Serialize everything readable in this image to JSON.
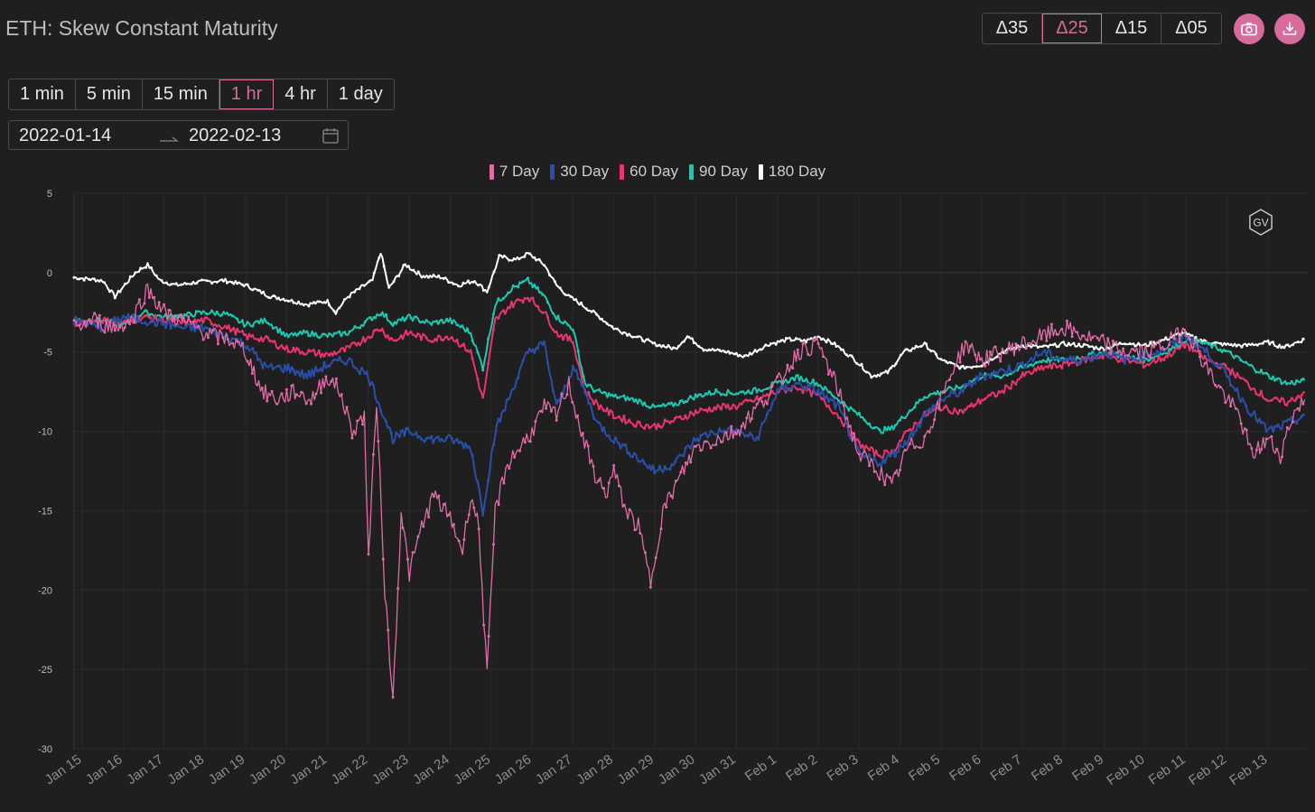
{
  "header": {
    "title": "ETH: Skew Constant Maturity",
    "delta_options": [
      "Δ35",
      "Δ25",
      "Δ15",
      "Δ05"
    ],
    "delta_selected": "Δ25",
    "camera_icon": "camera-icon",
    "download_icon": "download-icon"
  },
  "controls": {
    "intervals": [
      "1 min",
      "5 min",
      "15 min",
      "1 hr",
      "4 hr",
      "1 day"
    ],
    "interval_selected": "1 hr",
    "date_start": "2022-01-14",
    "date_end": "2022-02-13",
    "calendar_icon": "calendar-icon"
  },
  "watermark": "GV",
  "colors": {
    "accent": "#d76b9c",
    "7 Day": "#e06ca8",
    "30 Day": "#2a4fa8",
    "60 Day": "#e8356d",
    "90 Day": "#1ec8b0",
    "180 Day": "#ffffff"
  },
  "chart_data": {
    "type": "line",
    "ylim": [
      -30,
      5
    ],
    "yticks": [
      5,
      0,
      -5,
      -10,
      -15,
      -20,
      -25,
      -30
    ],
    "xlim": [
      14.8,
      44.95
    ],
    "x_tick_labels": [
      "Jan 15",
      "Jan 16",
      "Jan 17",
      "Jan 18",
      "Jan 19",
      "Jan 20",
      "Jan 21",
      "Jan 22",
      "Jan 23",
      "Jan 24",
      "Jan 25",
      "Jan 26",
      "Jan 27",
      "Jan 28",
      "Jan 29",
      "Jan 30",
      "Jan 31",
      "Feb 1",
      "Feb 2",
      "Feb 3",
      "Feb 4",
      "Feb 5",
      "Feb 6",
      "Feb 7",
      "Feb 8",
      "Feb 9",
      "Feb 10",
      "Feb 11",
      "Feb 12",
      "Feb 13"
    ],
    "x_tick_values": [
      15,
      16,
      17,
      18,
      19,
      20,
      21,
      22,
      23,
      24,
      25,
      26,
      27,
      28,
      29,
      30,
      31,
      32,
      33,
      34,
      35,
      36,
      37,
      38,
      39,
      40,
      41,
      42,
      43,
      44
    ],
    "x_unit": "day (Jan 15 = 15, Feb 1 = 32)",
    "legend": [
      "7 Day",
      "30 Day",
      "60 Day",
      "90 Day",
      "180 Day"
    ],
    "legend_position": "top-center",
    "grid": true,
    "series": [
      {
        "name": "180 Day",
        "x": [
          14.8,
          15.5,
          15.8,
          16.3,
          16.6,
          16.9,
          17.3,
          17.8,
          18.5,
          19.0,
          19.6,
          20.0,
          20.5,
          21.0,
          21.2,
          21.5,
          21.9,
          22.1,
          22.3,
          22.5,
          22.9,
          23.3,
          23.8,
          24.2,
          24.6,
          24.9,
          25.2,
          25.6,
          25.9,
          26.3,
          26.6,
          26.9,
          27.5,
          28.0,
          28.5,
          29.0,
          29.5,
          29.8,
          30.2,
          30.8,
          31.2,
          31.8,
          32.3,
          32.7,
          33.0,
          33.4,
          33.9,
          34.3,
          34.7,
          35.1,
          35.6,
          36.0,
          36.5,
          37.0,
          37.5,
          38.0,
          38.5,
          39.0,
          39.5,
          40.0,
          40.5,
          41.0,
          41.5,
          41.9,
          42.4,
          42.8,
          43.4,
          44.0,
          44.4,
          44.9
        ],
        "y": [
          -0.3,
          -0.5,
          -1.5,
          0.0,
          0.5,
          -0.5,
          -0.8,
          -0.6,
          -0.5,
          -0.8,
          -1.5,
          -1.7,
          -2.0,
          -1.8,
          -2.5,
          -1.5,
          -0.8,
          -0.5,
          1.3,
          -1.0,
          0.5,
          -0.2,
          -0.3,
          -0.8,
          -0.5,
          -1.2,
          1.0,
          0.8,
          1.2,
          0.5,
          -0.8,
          -1.5,
          -2.5,
          -3.5,
          -4.0,
          -4.5,
          -4.8,
          -4.0,
          -4.8,
          -5.0,
          -5.3,
          -4.5,
          -4.2,
          -4.3,
          -4.0,
          -4.5,
          -5.5,
          -6.5,
          -6.3,
          -5.0,
          -4.5,
          -5.5,
          -6.0,
          -5.8,
          -5.0,
          -4.6,
          -4.7,
          -4.5,
          -4.6,
          -4.8,
          -4.4,
          -4.6,
          -4.2,
          -3.8,
          -4.3,
          -4.5,
          -4.6,
          -4.4,
          -4.7,
          -4.2
        ]
      },
      {
        "name": "90 Day",
        "x": [
          14.8,
          15.5,
          16.0,
          16.5,
          17.0,
          17.5,
          18.0,
          18.5,
          19.0,
          19.5,
          20.0,
          20.5,
          21.0,
          21.5,
          22.0,
          22.3,
          22.6,
          23.0,
          23.5,
          24.0,
          24.5,
          24.8,
          25.1,
          25.5,
          25.9,
          26.3,
          26.6,
          27.0,
          27.3,
          27.6,
          28.0,
          28.5,
          29.0,
          29.5,
          30.0,
          30.5,
          31.0,
          31.5,
          32.0,
          32.5,
          33.0,
          33.5,
          34.0,
          34.5,
          34.8,
          35.2,
          35.6,
          36.0,
          36.5,
          37.0,
          37.5,
          38.0,
          38.5,
          39.0,
          39.5,
          40.0,
          40.5,
          41.0,
          41.5,
          42.0,
          42.5,
          43.0,
          43.5,
          44.0,
          44.5,
          44.9
        ],
        "y": [
          -3.0,
          -3.0,
          -3.3,
          -2.5,
          -2.8,
          -2.7,
          -2.5,
          -2.6,
          -3.3,
          -3.0,
          -4.0,
          -3.8,
          -4.0,
          -3.8,
          -3.0,
          -2.5,
          -3.2,
          -2.8,
          -3.2,
          -3.0,
          -3.8,
          -6.0,
          -2.0,
          -1.0,
          -0.5,
          -1.5,
          -2.8,
          -3.5,
          -7.0,
          -7.5,
          -7.8,
          -8.0,
          -8.5,
          -8.3,
          -7.8,
          -7.5,
          -7.6,
          -7.4,
          -7.0,
          -6.6,
          -7.0,
          -8.0,
          -9.0,
          -10.0,
          -9.8,
          -8.8,
          -7.8,
          -7.5,
          -7.2,
          -6.5,
          -6.5,
          -6.0,
          -5.5,
          -5.5,
          -5.3,
          -5.0,
          -5.3,
          -5.5,
          -5.0,
          -4.2,
          -4.5,
          -5.0,
          -5.8,
          -6.5,
          -7.0,
          -6.8
        ]
      },
      {
        "name": "60 Day",
        "x": [
          14.8,
          15.5,
          16.0,
          16.5,
          17.0,
          17.5,
          18.0,
          18.5,
          19.0,
          19.5,
          20.0,
          20.5,
          21.0,
          21.5,
          22.0,
          22.3,
          22.6,
          23.0,
          23.5,
          24.0,
          24.5,
          24.8,
          25.1,
          25.5,
          25.9,
          26.3,
          26.6,
          27.0,
          27.3,
          27.6,
          28.0,
          28.5,
          29.0,
          29.5,
          30.0,
          30.5,
          31.0,
          31.5,
          32.0,
          32.5,
          33.0,
          33.5,
          34.0,
          34.5,
          34.8,
          35.2,
          35.6,
          36.0,
          36.5,
          37.0,
          37.5,
          38.0,
          38.5,
          39.0,
          39.5,
          40.0,
          40.5,
          41.0,
          41.5,
          42.0,
          42.5,
          43.0,
          43.5,
          44.0,
          44.5,
          44.9
        ],
        "y": [
          -3.2,
          -3.0,
          -3.2,
          -2.8,
          -3.0,
          -3.2,
          -3.0,
          -3.4,
          -4.0,
          -4.2,
          -4.8,
          -5.0,
          -5.2,
          -4.8,
          -4.0,
          -3.5,
          -4.3,
          -3.8,
          -4.2,
          -4.0,
          -5.0,
          -8.0,
          -3.0,
          -2.0,
          -1.5,
          -2.5,
          -3.8,
          -4.3,
          -7.5,
          -8.3,
          -9.0,
          -9.5,
          -9.7,
          -9.3,
          -8.8,
          -8.5,
          -8.4,
          -8.0,
          -7.5,
          -7.2,
          -7.8,
          -9.0,
          -10.8,
          -11.5,
          -11.3,
          -10.0,
          -9.0,
          -8.5,
          -8.8,
          -8.0,
          -7.5,
          -6.5,
          -6.0,
          -5.8,
          -5.5,
          -5.2,
          -5.5,
          -5.8,
          -5.3,
          -4.5,
          -5.5,
          -6.0,
          -7.0,
          -8.0,
          -8.2,
          -7.5
        ]
      },
      {
        "name": "30 Day",
        "x": [
          14.8,
          15.5,
          16.0,
          16.5,
          17.0,
          17.5,
          18.0,
          18.5,
          19.0,
          19.5,
          20.0,
          20.5,
          21.0,
          21.5,
          22.0,
          22.3,
          22.6,
          23.0,
          23.5,
          24.0,
          24.5,
          24.8,
          25.1,
          25.5,
          25.9,
          26.3,
          26.6,
          27.0,
          27.3,
          27.6,
          28.0,
          28.5,
          29.0,
          29.5,
          30.0,
          30.5,
          31.0,
          31.5,
          32.0,
          32.5,
          33.0,
          33.5,
          34.0,
          34.5,
          34.8,
          35.2,
          35.6,
          36.0,
          36.5,
          37.0,
          37.5,
          38.0,
          38.5,
          39.0,
          39.5,
          40.0,
          40.5,
          41.0,
          41.5,
          42.0,
          42.5,
          43.0,
          43.5,
          44.0,
          44.5,
          44.9
        ],
        "y": [
          -3.0,
          -3.5,
          -2.8,
          -3.0,
          -3.2,
          -3.5,
          -3.5,
          -4.0,
          -4.5,
          -6.0,
          -6.0,
          -6.5,
          -5.8,
          -5.5,
          -6.5,
          -8.5,
          -10.5,
          -10.0,
          -10.5,
          -10.5,
          -11.0,
          -15.0,
          -10.0,
          -7.5,
          -5.0,
          -4.5,
          -8.5,
          -6.0,
          -7.5,
          -9.5,
          -10.5,
          -11.5,
          -12.5,
          -12.0,
          -10.5,
          -10.0,
          -10.0,
          -10.5,
          -7.5,
          -7.0,
          -7.5,
          -8.5,
          -11.5,
          -12.0,
          -11.5,
          -10.5,
          -9.0,
          -8.0,
          -7.5,
          -6.5,
          -6.2,
          -5.8,
          -5.0,
          -5.5,
          -5.5,
          -5.0,
          -5.5,
          -5.2,
          -4.8,
          -4.0,
          -5.0,
          -6.5,
          -8.5,
          -10.0,
          -9.5,
          -9.0
        ]
      },
      {
        "name": "7 Day",
        "x": [
          14.8,
          15.3,
          15.8,
          16.2,
          16.6,
          17.0,
          17.4,
          17.8,
          18.2,
          18.6,
          19.0,
          19.4,
          19.8,
          20.2,
          20.6,
          21.0,
          21.3,
          21.6,
          21.9,
          22.0,
          22.2,
          22.4,
          22.6,
          22.8,
          23.0,
          23.3,
          23.6,
          24.0,
          24.3,
          24.5,
          24.7,
          24.9,
          25.1,
          25.4,
          25.7,
          26.0,
          26.3,
          26.6,
          26.9,
          27.2,
          27.5,
          27.8,
          28.0,
          28.3,
          28.6,
          28.9,
          29.2,
          29.6,
          30.0,
          30.5,
          31.0,
          31.5,
          32.0,
          32.5,
          33.0,
          33.5,
          34.0,
          34.5,
          34.8,
          35.2,
          35.6,
          36.0,
          36.3,
          36.6,
          37.0,
          37.5,
          38.0,
          38.5,
          39.0,
          39.5,
          40.0,
          40.5,
          41.0,
          41.5,
          42.0,
          42.5,
          43.0,
          43.3,
          43.6,
          44.0,
          44.3,
          44.6,
          44.9
        ],
        "y": [
          -3.5,
          -3.0,
          -3.5,
          -3.0,
          -1.0,
          -2.5,
          -3.0,
          -3.5,
          -4.0,
          -4.2,
          -5.0,
          -7.5,
          -8.0,
          -7.5,
          -8.0,
          -6.5,
          -7.5,
          -10.0,
          -9.0,
          -18.0,
          -8.0,
          -20.0,
          -27.0,
          -15.0,
          -19.0,
          -16.0,
          -14.0,
          -15.5,
          -17.5,
          -14.0,
          -16.0,
          -25.5,
          -15.0,
          -12.0,
          -11.0,
          -10.0,
          -8.5,
          -9.0,
          -7.0,
          -10.0,
          -12.5,
          -14.0,
          -12.5,
          -15.0,
          -16.0,
          -19.5,
          -15.0,
          -13.0,
          -11.0,
          -10.5,
          -10.0,
          -8.5,
          -7.0,
          -5.0,
          -4.5,
          -7.5,
          -11.5,
          -12.5,
          -13.5,
          -11.0,
          -10.5,
          -8.0,
          -6.0,
          -4.5,
          -5.5,
          -5.0,
          -4.5,
          -4.0,
          -3.5,
          -4.0,
          -4.5,
          -5.0,
          -5.0,
          -4.5,
          -3.5,
          -6.0,
          -8.0,
          -9.0,
          -11.5,
          -10.5,
          -11.5,
          -9.0,
          -8.0
        ]
      }
    ]
  }
}
